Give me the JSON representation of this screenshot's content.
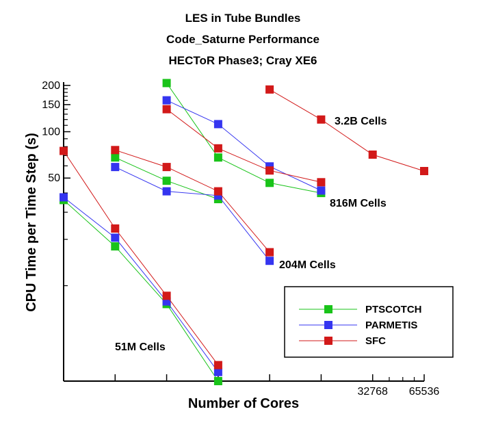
{
  "chart_data": {
    "type": "line",
    "title": [
      "LES in Tube Bundles",
      "Code_Saturne Performance",
      "HECToR Phase3; Cray XE6"
    ],
    "xlabel": "Number of Cores",
    "ylabel": "CPU Time per Time Step (s)",
    "x_scale": "log2",
    "y_scale": "log",
    "xlim": [
      512,
      65536
    ],
    "ylim": [
      2.4,
      210
    ],
    "x_ticks": [
      512,
      1024,
      2048,
      4096,
      8192,
      16384,
      32768,
      65536
    ],
    "x_tick_labels": [
      {
        "value": 32768,
        "label": "32768"
      },
      {
        "value": 65536,
        "label": "65536"
      }
    ],
    "x_minor_ticks": [
      40960,
      49152,
      57344
    ],
    "y_tick_labels": [
      {
        "value": 50,
        "label": "50"
      },
      {
        "value": 100,
        "label": "100"
      },
      {
        "value": 150,
        "label": "150"
      },
      {
        "value": 200,
        "label": "200"
      }
    ],
    "y_minor_ticks": [
      10,
      20,
      30,
      40,
      60,
      70,
      80,
      90,
      110,
      120,
      130,
      140,
      160,
      170,
      180,
      190
    ],
    "legend": {
      "placement": "bottom-right",
      "entries": [
        {
          "name": "PTSCOTCH",
          "color": "#19c319"
        },
        {
          "name": "PARMETIS",
          "color": "#3535f0"
        },
        {
          "name": "SFC",
          "color": "#d21919"
        }
      ]
    },
    "groups": [
      {
        "label": "51M Cells",
        "series": [
          {
            "name": "PTSCOTCH",
            "x": [
              512,
              1024,
              2048,
              4096
            ],
            "y": [
              36,
              18,
              7.6,
              2.4
            ]
          },
          {
            "name": "PARMETIS",
            "x": [
              512,
              1024,
              2048,
              4096
            ],
            "y": [
              37.5,
              20.5,
              7.9,
              2.75
            ]
          },
          {
            "name": "SFC",
            "x": [
              512,
              1024,
              2048,
              4096
            ],
            "y": [
              75,
              23.5,
              8.6,
              3.05
            ]
          }
        ]
      },
      {
        "label": "204M Cells",
        "series": [
          {
            "name": "PTSCOTCH",
            "x": [
              1024,
              2048,
              4096
            ],
            "y": [
              68,
              48,
              36.5
            ]
          },
          {
            "name": "PARMETIS",
            "x": [
              1024,
              2048,
              4096,
              8192
            ],
            "y": [
              59,
              41,
              38.5,
              14.5
            ]
          },
          {
            "name": "SFC",
            "x": [
              1024,
              2048,
              4096,
              8192
            ],
            "y": [
              76,
              59,
              41,
              16.5
            ]
          }
        ]
      },
      {
        "label": "816M Cells",
        "series": [
          {
            "name": "PTSCOTCH",
            "x": [
              2048,
              4096,
              8192,
              16384
            ],
            "y": [
              207,
              68,
              46.5,
              40
            ]
          },
          {
            "name": "PARMETIS",
            "x": [
              2048,
              4096,
              8192,
              16384
            ],
            "y": [
              160,
              112,
              59.5,
              41.5
            ]
          },
          {
            "name": "SFC",
            "x": [
              2048,
              4096,
              8192,
              16384
            ],
            "y": [
              140,
              78,
              56,
              47
            ]
          }
        ]
      },
      {
        "label": "3.2B Cells",
        "series": [
          {
            "name": "SFC",
            "x": [
              8192,
              16384,
              32768,
              65536
            ],
            "y": [
              188,
              120,
              71,
              55.5
            ]
          }
        ]
      }
    ]
  }
}
